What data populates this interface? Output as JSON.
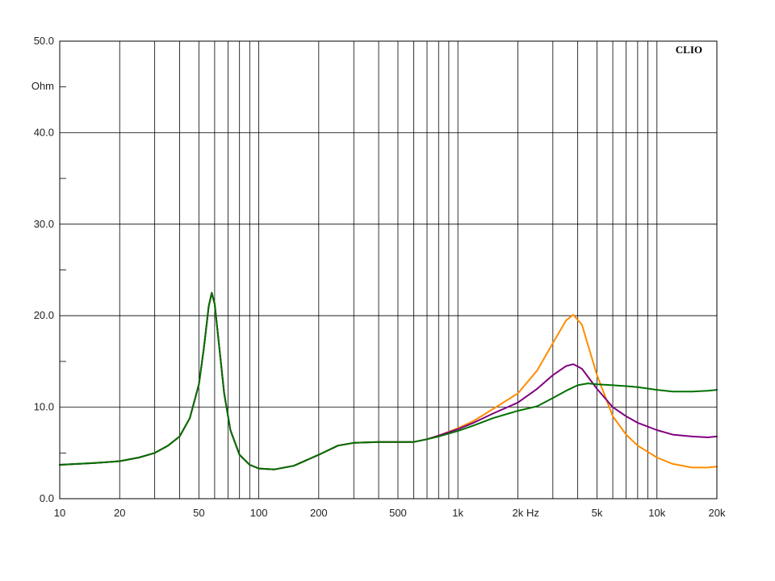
{
  "chart_data": {
    "type": "line",
    "brand": "CLIO",
    "y_unit": "Ohm",
    "x_unit": "Hz",
    "x_scale": "log",
    "xlim": [
      10,
      20000
    ],
    "ylim": [
      0,
      50
    ],
    "grid": true,
    "x_tick_labels": [
      {
        "value": 10,
        "label": "10"
      },
      {
        "value": 20,
        "label": "20"
      },
      {
        "value": 50,
        "label": "50"
      },
      {
        "value": 100,
        "label": "100"
      },
      {
        "value": 200,
        "label": "200"
      },
      {
        "value": 500,
        "label": "500"
      },
      {
        "value": 1000,
        "label": "1k"
      },
      {
        "value": 2000,
        "label": "2k"
      },
      {
        "value": 5000,
        "label": "5k"
      },
      {
        "value": 10000,
        "label": "10k"
      },
      {
        "value": 20000,
        "label": "20k"
      }
    ],
    "y_tick_labels": [
      {
        "value": 0,
        "label": "0.0"
      },
      {
        "value": 10,
        "label": "10.0"
      },
      {
        "value": 20,
        "label": "20.0"
      },
      {
        "value": 30,
        "label": "30.0"
      },
      {
        "value": 40,
        "label": "40.0"
      },
      {
        "value": 50,
        "label": "50.0"
      }
    ],
    "series": [
      {
        "color": "#ff8c00",
        "points": [
          [
            10,
            3.7
          ],
          [
            15,
            3.9
          ],
          [
            20,
            4.1
          ],
          [
            25,
            4.5
          ],
          [
            30,
            5.0
          ],
          [
            35,
            5.8
          ],
          [
            40,
            6.8
          ],
          [
            45,
            8.8
          ],
          [
            50,
            12.5
          ],
          [
            53,
            16.5
          ],
          [
            56,
            21.0
          ],
          [
            58,
            22.5
          ],
          [
            60,
            21.3
          ],
          [
            63,
            17.0
          ],
          [
            67,
            11.5
          ],
          [
            72,
            7.5
          ],
          [
            80,
            4.8
          ],
          [
            90,
            3.7
          ],
          [
            100,
            3.3
          ],
          [
            120,
            3.2
          ],
          [
            150,
            3.6
          ],
          [
            200,
            4.8
          ],
          [
            250,
            5.8
          ],
          [
            300,
            6.1
          ],
          [
            400,
            6.2
          ],
          [
            500,
            6.2
          ],
          [
            600,
            6.2
          ],
          [
            700,
            6.5
          ],
          [
            800,
            6.9
          ],
          [
            1000,
            7.7
          ],
          [
            1200,
            8.5
          ],
          [
            1500,
            9.8
          ],
          [
            2000,
            11.5
          ],
          [
            2500,
            14.0
          ],
          [
            3000,
            17.0
          ],
          [
            3500,
            19.5
          ],
          [
            3800,
            20.1
          ],
          [
            4200,
            19.0
          ],
          [
            5000,
            13.5
          ],
          [
            6000,
            9.0
          ],
          [
            7000,
            7.0
          ],
          [
            8000,
            5.8
          ],
          [
            10000,
            4.5
          ],
          [
            12000,
            3.8
          ],
          [
            15000,
            3.4
          ],
          [
            18000,
            3.4
          ],
          [
            20000,
            3.5
          ]
        ]
      },
      {
        "color": "#800080",
        "points": [
          [
            10,
            3.7
          ],
          [
            15,
            3.9
          ],
          [
            20,
            4.1
          ],
          [
            25,
            4.5
          ],
          [
            30,
            5.0
          ],
          [
            35,
            5.8
          ],
          [
            40,
            6.8
          ],
          [
            45,
            8.8
          ],
          [
            50,
            12.5
          ],
          [
            53,
            16.5
          ],
          [
            56,
            21.0
          ],
          [
            58,
            22.5
          ],
          [
            60,
            21.3
          ],
          [
            63,
            17.0
          ],
          [
            67,
            11.5
          ],
          [
            72,
            7.5
          ],
          [
            80,
            4.8
          ],
          [
            90,
            3.7
          ],
          [
            100,
            3.3
          ],
          [
            120,
            3.2
          ],
          [
            150,
            3.6
          ],
          [
            200,
            4.8
          ],
          [
            250,
            5.8
          ],
          [
            300,
            6.1
          ],
          [
            400,
            6.2
          ],
          [
            500,
            6.2
          ],
          [
            600,
            6.2
          ],
          [
            700,
            6.5
          ],
          [
            800,
            6.9
          ],
          [
            1000,
            7.6
          ],
          [
            1200,
            8.3
          ],
          [
            1500,
            9.3
          ],
          [
            2000,
            10.5
          ],
          [
            2500,
            12.0
          ],
          [
            3000,
            13.5
          ],
          [
            3500,
            14.5
          ],
          [
            3800,
            14.7
          ],
          [
            4200,
            14.2
          ],
          [
            5000,
            12.0
          ],
          [
            6000,
            10.0
          ],
          [
            7000,
            9.0
          ],
          [
            8000,
            8.3
          ],
          [
            10000,
            7.5
          ],
          [
            12000,
            7.0
          ],
          [
            15000,
            6.8
          ],
          [
            18000,
            6.7
          ],
          [
            20000,
            6.8
          ]
        ]
      },
      {
        "color": "#007000",
        "points": [
          [
            10,
            3.7
          ],
          [
            15,
            3.9
          ],
          [
            20,
            4.1
          ],
          [
            25,
            4.5
          ],
          [
            30,
            5.0
          ],
          [
            35,
            5.8
          ],
          [
            40,
            6.8
          ],
          [
            45,
            8.8
          ],
          [
            50,
            12.5
          ],
          [
            53,
            16.5
          ],
          [
            56,
            21.0
          ],
          [
            58,
            22.5
          ],
          [
            60,
            21.3
          ],
          [
            63,
            17.0
          ],
          [
            67,
            11.5
          ],
          [
            72,
            7.5
          ],
          [
            80,
            4.8
          ],
          [
            90,
            3.7
          ],
          [
            100,
            3.3
          ],
          [
            120,
            3.2
          ],
          [
            150,
            3.6
          ],
          [
            200,
            4.8
          ],
          [
            250,
            5.8
          ],
          [
            300,
            6.1
          ],
          [
            400,
            6.2
          ],
          [
            500,
            6.2
          ],
          [
            600,
            6.2
          ],
          [
            700,
            6.5
          ],
          [
            800,
            6.8
          ],
          [
            1000,
            7.4
          ],
          [
            1200,
            8.0
          ],
          [
            1500,
            8.8
          ],
          [
            2000,
            9.6
          ],
          [
            2500,
            10.1
          ],
          [
            3000,
            11.0
          ],
          [
            3500,
            11.8
          ],
          [
            4000,
            12.4
          ],
          [
            4500,
            12.6
          ],
          [
            5000,
            12.5
          ],
          [
            6000,
            12.4
          ],
          [
            7000,
            12.3
          ],
          [
            8000,
            12.2
          ],
          [
            10000,
            11.9
          ],
          [
            12000,
            11.7
          ],
          [
            15000,
            11.7
          ],
          [
            18000,
            11.8
          ],
          [
            20000,
            11.9
          ]
        ]
      }
    ]
  }
}
